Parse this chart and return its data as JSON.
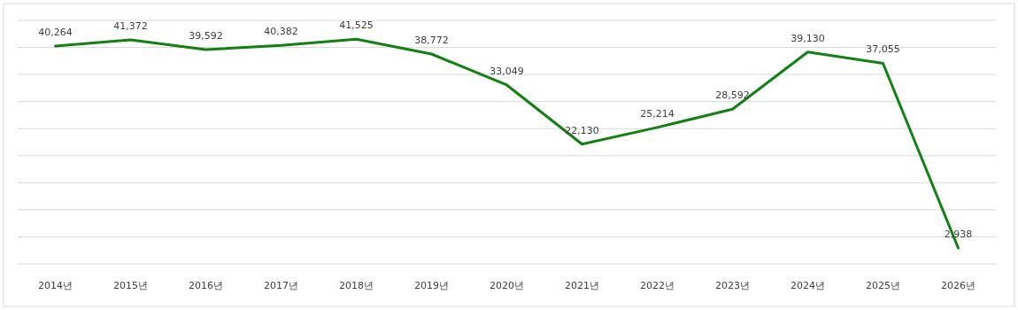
{
  "chart_data": {
    "type": "line",
    "categories": [
      "2014년",
      "2015년",
      "2016년",
      "2017년",
      "2018년",
      "2019년",
      "2020년",
      "2021년",
      "2022년",
      "2023년",
      "2024년",
      "2025년",
      "2026년"
    ],
    "series": [
      {
        "color": "#138013",
        "values": [
          40264,
          41372,
          39592,
          40382,
          41525,
          38772,
          33049,
          22130,
          25214,
          28592,
          39130,
          37055,
          2938
        ],
        "value_labels": [
          "40,264",
          "41,372",
          "39,592",
          "40,382",
          "41,525",
          "38,772",
          "33,049",
          "22,130",
          "25,214",
          "28,592",
          "39,130",
          "37,055",
          "2,938"
        ]
      }
    ],
    "grid": "y",
    "marker": "none",
    "line_style": "solid"
  }
}
